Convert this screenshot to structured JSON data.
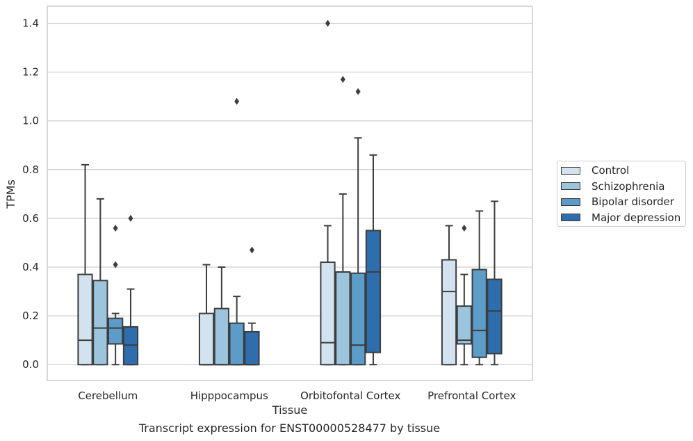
{
  "chart_data": {
    "type": "box",
    "title": "",
    "caption": "Transcript expression for ENST00000528477 by tissue",
    "xlabel": "Tissue",
    "ylabel": "TPMs",
    "ylim": [
      -0.065,
      1.47
    ],
    "yticks": [
      0.0,
      0.2,
      0.4,
      0.6,
      0.8,
      1.0,
      1.2,
      1.4
    ],
    "ytick_labels": [
      "0.0",
      "0.2",
      "0.4",
      "0.6",
      "0.8",
      "1.0",
      "1.2",
      "1.4"
    ],
    "grid": "horizontal",
    "legend_position": "right",
    "categories": [
      "Cerebellum",
      "Hipppocampus",
      "Orbitofontal Cortex",
      "Prefrontal Cortex"
    ],
    "series": [
      {
        "name": "Control",
        "color": "#d3e2ef",
        "boxes": [
          {
            "whislo": 0.0,
            "q1": 0.0,
            "med": 0.1,
            "q3": 0.37,
            "whishi": 0.82,
            "fliers": []
          },
          {
            "whislo": 0.0,
            "q1": 0.0,
            "med": 0.0,
            "q3": 0.21,
            "whishi": 0.41,
            "fliers": []
          },
          {
            "whislo": 0.0,
            "q1": 0.0,
            "med": 0.09,
            "q3": 0.42,
            "whishi": 0.57,
            "fliers": [
              1.4
            ]
          },
          {
            "whislo": 0.0,
            "q1": 0.0,
            "med": 0.3,
            "q3": 0.43,
            "whishi": 0.57,
            "fliers": []
          }
        ]
      },
      {
        "name": "Schizophrenia",
        "color": "#9dc4dd",
        "boxes": [
          {
            "whislo": 0.0,
            "q1": 0.0,
            "med": 0.15,
            "q3": 0.345,
            "whishi": 0.68,
            "fliers": []
          },
          {
            "whislo": 0.0,
            "q1": 0.0,
            "med": 0.0,
            "q3": 0.23,
            "whishi": 0.4,
            "fliers": []
          },
          {
            "whislo": 0.0,
            "q1": 0.0,
            "med": 0.38,
            "q3": 0.38,
            "whishi": 0.7,
            "fliers": [
              1.17
            ]
          },
          {
            "whislo": 0.0,
            "q1": 0.085,
            "med": 0.1,
            "q3": 0.24,
            "whishi": 0.37,
            "fliers": [
              0.56
            ]
          }
        ]
      },
      {
        "name": "Bipolar disorder",
        "color": "#5b9cc8",
        "boxes": [
          {
            "whislo": 0.0,
            "q1": 0.085,
            "med": 0.15,
            "q3": 0.19,
            "whishi": 0.21,
            "fliers": [
              0.41,
              0.56
            ]
          },
          {
            "whislo": 0.0,
            "q1": 0.0,
            "med": 0.0,
            "q3": 0.17,
            "whishi": 0.28,
            "fliers": [
              1.08
            ]
          },
          {
            "whislo": 0.0,
            "q1": 0.0,
            "med": 0.08,
            "q3": 0.375,
            "whishi": 0.93,
            "fliers": [
              1.12
            ]
          },
          {
            "whislo": 0.0,
            "q1": 0.03,
            "med": 0.14,
            "q3": 0.39,
            "whishi": 0.63,
            "fliers": []
          }
        ]
      },
      {
        "name": "Major depression",
        "color": "#2f6eac",
        "boxes": [
          {
            "whislo": 0.0,
            "q1": 0.0,
            "med": 0.08,
            "q3": 0.155,
            "whishi": 0.31,
            "fliers": [
              0.6
            ]
          },
          {
            "whislo": 0.0,
            "q1": 0.0,
            "med": 0.0,
            "q3": 0.135,
            "whishi": 0.17,
            "fliers": [
              0.47
            ]
          },
          {
            "whislo": 0.0,
            "q1": 0.05,
            "med": 0.38,
            "q3": 0.55,
            "whishi": 0.86,
            "fliers": []
          },
          {
            "whislo": 0.0,
            "q1": 0.045,
            "med": 0.22,
            "q3": 0.35,
            "whishi": 0.67,
            "fliers": []
          }
        ]
      }
    ]
  }
}
